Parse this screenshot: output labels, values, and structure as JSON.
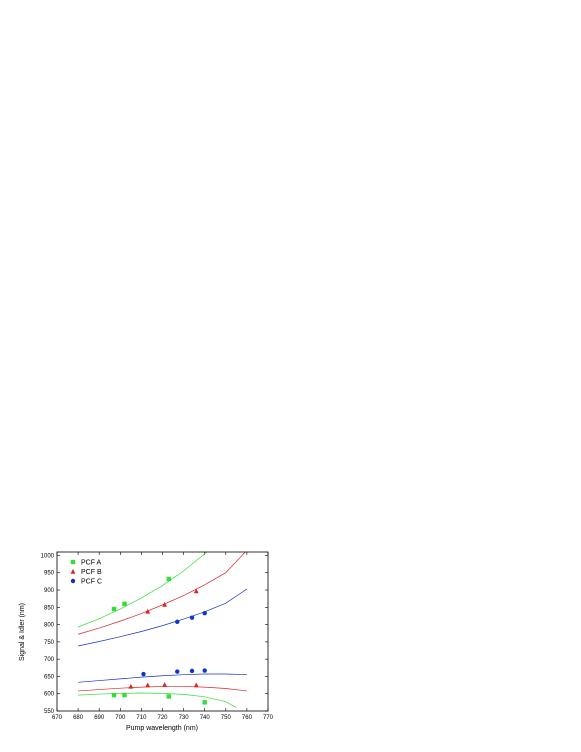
{
  "chart_data": {
    "type": "scatter",
    "xlabel": "Pump wavelength (nm)",
    "ylabel": "Signal & Idler (nm)",
    "xlim": [
      670,
      770
    ],
    "ylim": [
      550,
      1010
    ],
    "xticks": [
      "670",
      "680",
      "690",
      "700",
      "710",
      "720",
      "730",
      "740",
      "750",
      "760",
      "770"
    ],
    "yticks": [
      "550",
      "600",
      "650",
      "700",
      "750",
      "800",
      "850",
      "900",
      "950",
      "1000"
    ],
    "legend_position": "top-left",
    "series": [
      {
        "name": "PCF A",
        "color": "#33dd33",
        "marker": "square",
        "idler": [
          {
            "x": 697,
            "y": 845
          },
          {
            "x": 702,
            "y": 860
          },
          {
            "x": 723,
            "y": 932
          }
        ],
        "signal": [
          {
            "x": 697,
            "y": 596
          },
          {
            "x": 702,
            "y": 596
          },
          {
            "x": 723,
            "y": 592
          },
          {
            "x": 740,
            "y": 575
          }
        ],
        "fit_upper": [
          [
            680,
            793
          ],
          [
            690,
            817
          ],
          [
            700,
            845
          ],
          [
            710,
            877
          ],
          [
            720,
            913
          ],
          [
            730,
            955
          ],
          [
            740,
            1005
          ],
          [
            745,
            1030
          ]
        ],
        "fit_lower": [
          [
            680,
            596
          ],
          [
            690,
            599
          ],
          [
            700,
            601
          ],
          [
            710,
            602
          ],
          [
            720,
            601
          ],
          [
            730,
            598
          ],
          [
            740,
            591
          ],
          [
            750,
            577
          ],
          [
            755,
            560
          ]
        ]
      },
      {
        "name": "PCF B",
        "color": "#dd2222",
        "marker": "triangle",
        "idler": [
          {
            "x": 713,
            "y": 838
          },
          {
            "x": 721,
            "y": 858
          },
          {
            "x": 736,
            "y": 897
          }
        ],
        "signal": [
          {
            "x": 705,
            "y": 621
          },
          {
            "x": 713,
            "y": 625
          },
          {
            "x": 721,
            "y": 626
          },
          {
            "x": 736,
            "y": 625
          }
        ],
        "fit_upper": [
          [
            680,
            772
          ],
          [
            690,
            790
          ],
          [
            700,
            810
          ],
          [
            710,
            832
          ],
          [
            720,
            857
          ],
          [
            730,
            884
          ],
          [
            740,
            915
          ],
          [
            750,
            950
          ],
          [
            760,
            1015
          ]
        ],
        "fit_lower": [
          [
            680,
            608
          ],
          [
            690,
            612
          ],
          [
            700,
            616
          ],
          [
            710,
            619
          ],
          [
            720,
            621
          ],
          [
            730,
            621
          ],
          [
            740,
            619
          ],
          [
            750,
            615
          ],
          [
            760,
            608
          ]
        ]
      },
      {
        "name": "PCF C",
        "color": "#1133cc",
        "marker": "circle",
        "idler": [
          {
            "x": 727,
            "y": 808
          },
          {
            "x": 734,
            "y": 820
          },
          {
            "x": 740,
            "y": 833
          }
        ],
        "signal": [
          {
            "x": 711,
            "y": 657
          },
          {
            "x": 727,
            "y": 664
          },
          {
            "x": 734,
            "y": 666
          },
          {
            "x": 740,
            "y": 667
          }
        ],
        "fit_upper": [
          [
            680,
            738
          ],
          [
            690,
            751
          ],
          [
            700,
            765
          ],
          [
            710,
            780
          ],
          [
            720,
            797
          ],
          [
            730,
            816
          ],
          [
            740,
            837
          ],
          [
            750,
            862
          ],
          [
            760,
            903
          ]
        ],
        "fit_lower": [
          [
            680,
            633
          ],
          [
            690,
            638
          ],
          [
            700,
            643
          ],
          [
            710,
            648
          ],
          [
            720,
            652
          ],
          [
            730,
            655
          ],
          [
            740,
            657
          ],
          [
            750,
            657
          ],
          [
            760,
            655
          ]
        ]
      }
    ]
  }
}
